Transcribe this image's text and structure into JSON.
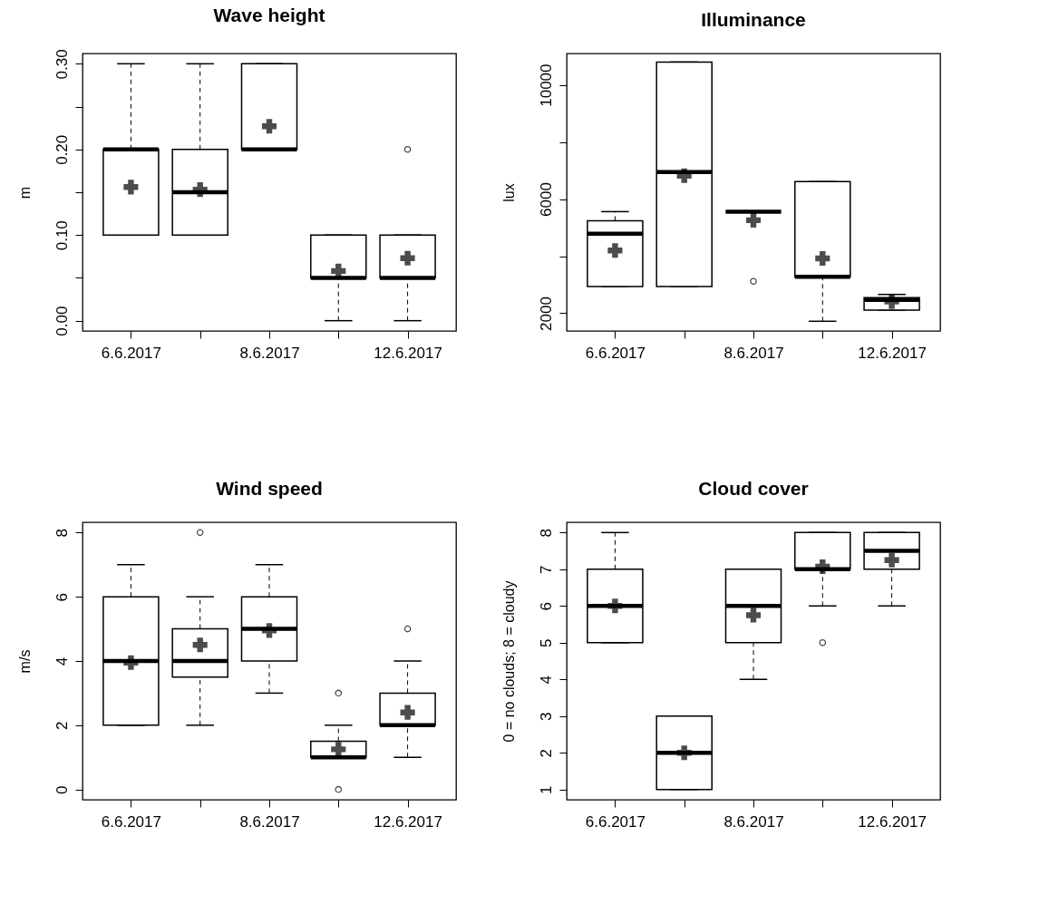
{
  "chart_data": [
    {
      "type": "box",
      "title": "Wave height",
      "ylabel": "m",
      "categories": [
        "6.6.2017",
        null,
        "8.6.2017",
        null,
        "12.6.2017"
      ],
      "ylim": [
        -0.012,
        0.312
      ],
      "yticks": [
        {
          "value": 0,
          "label": "0.00"
        },
        {
          "value": 0.05,
          "label": null
        },
        {
          "value": 0.1,
          "label": "0.10"
        },
        {
          "value": 0.15,
          "label": null
        },
        {
          "value": 0.2,
          "label": "0.20"
        },
        {
          "value": 0.25,
          "label": null
        },
        {
          "value": 0.3,
          "label": "0.30"
        }
      ],
      "boxes": [
        {
          "low": 0.1,
          "q1": 0.1,
          "median": 0.2,
          "q3": 0.2,
          "high": 0.3,
          "mean": 0.156
        },
        {
          "low": 0.1,
          "q1": 0.1,
          "median": 0.15,
          "q3": 0.2,
          "high": 0.3,
          "mean": 0.153
        },
        {
          "low": 0.2,
          "q1": 0.2,
          "median": 0.2,
          "q3": 0.3,
          "high": 0.3,
          "mean": 0.227
        },
        {
          "low": 0,
          "q1": 0.05,
          "median": 0.05,
          "q3": 0.1,
          "high": 0.1,
          "mean": 0.058
        },
        {
          "low": 0,
          "q1": 0.05,
          "median": 0.05,
          "q3": 0.1,
          "high": 0.1,
          "mean": 0.073,
          "outliers": [
            0.2
          ]
        }
      ]
    },
    {
      "type": "box",
      "title": "Illuminance",
      "ylabel": "lux",
      "categories": [
        "6.6.2017",
        null,
        "8.6.2017",
        null,
        "12.6.2017"
      ],
      "ylim": [
        1380,
        11100
      ],
      "yticks": [
        2000,
        {
          "value": 4000,
          "label": null
        },
        6000,
        {
          "value": 8000,
          "label": null
        },
        10000
      ],
      "boxes": [
        {
          "low": 2940,
          "q1": 2940,
          "median": 4790,
          "q3": 5240,
          "high": 5560,
          "mean": 4200
        },
        {
          "low": 2940,
          "q1": 2940,
          "median": 6950,
          "q3": 10800,
          "high": 10800,
          "mean": 6820
        },
        {
          "low": 5560,
          "q1": 5560,
          "median": 5560,
          "q3": 5560,
          "high": 5560,
          "mean": 5260,
          "outliers": [
            3120
          ]
        },
        {
          "low": 1720,
          "q1": 3280,
          "median": 3280,
          "q3": 6610,
          "high": 6610,
          "mean": 3920
        },
        {
          "low": 2110,
          "q1": 2110,
          "median": 2470,
          "q3": 2550,
          "high": 2660,
          "mean": 2410
        }
      ]
    },
    {
      "type": "box",
      "title": "Wind speed",
      "ylabel": "m/s",
      "categories": [
        "6.6.2017",
        null,
        "8.6.2017",
        null,
        "12.6.2017"
      ],
      "ylim": [
        -0.32,
        8.32
      ],
      "yticks": [
        0,
        2,
        4,
        6,
        8
      ],
      "boxes": [
        {
          "low": 2,
          "q1": 2,
          "median": 4,
          "q3": 6,
          "high": 7,
          "mean": 3.95
        },
        {
          "low": 2,
          "q1": 3.5,
          "median": 4,
          "q3": 5,
          "high": 6,
          "mean": 4.5,
          "outliers": [
            8
          ]
        },
        {
          "low": 3,
          "q1": 4,
          "median": 5,
          "q3": 6,
          "high": 7,
          "mean": 4.95
        },
        {
          "low": 1,
          "q1": 1,
          "median": 1,
          "q3": 1.5,
          "high": 2,
          "mean": 1.25,
          "outliers": [
            3,
            0
          ]
        },
        {
          "low": 1,
          "q1": 2,
          "median": 2,
          "q3": 3,
          "high": 4,
          "mean": 2.4,
          "outliers": [
            5
          ]
        }
      ]
    },
    {
      "type": "box",
      "title": "Cloud cover",
      "ylabel": "0 = no clouds; 8 = cloudy",
      "categories": [
        "6.6.2017",
        null,
        "8.6.2017",
        null,
        "12.6.2017"
      ],
      "ylim": [
        0.72,
        8.28
      ],
      "yticks": [
        1,
        2,
        3,
        4,
        5,
        6,
        7,
        8
      ],
      "boxes": [
        {
          "low": 5,
          "q1": 5,
          "median": 6,
          "q3": 7,
          "high": 8,
          "mean": 6.0
        },
        {
          "low": 1,
          "q1": 1,
          "median": 2,
          "q3": 3,
          "high": 3,
          "mean": 2.0
        },
        {
          "low": 4,
          "q1": 5,
          "median": 6,
          "q3": 7,
          "high": 7,
          "mean": 5.75
        },
        {
          "low": 6,
          "q1": 7,
          "median": 7,
          "q3": 8,
          "high": 8,
          "mean": 7.07,
          "outliers": [
            5
          ]
        },
        {
          "low": 6,
          "q1": 7,
          "median": 7.5,
          "q3": 8,
          "high": 8,
          "mean": 7.25
        }
      ]
    }
  ]
}
